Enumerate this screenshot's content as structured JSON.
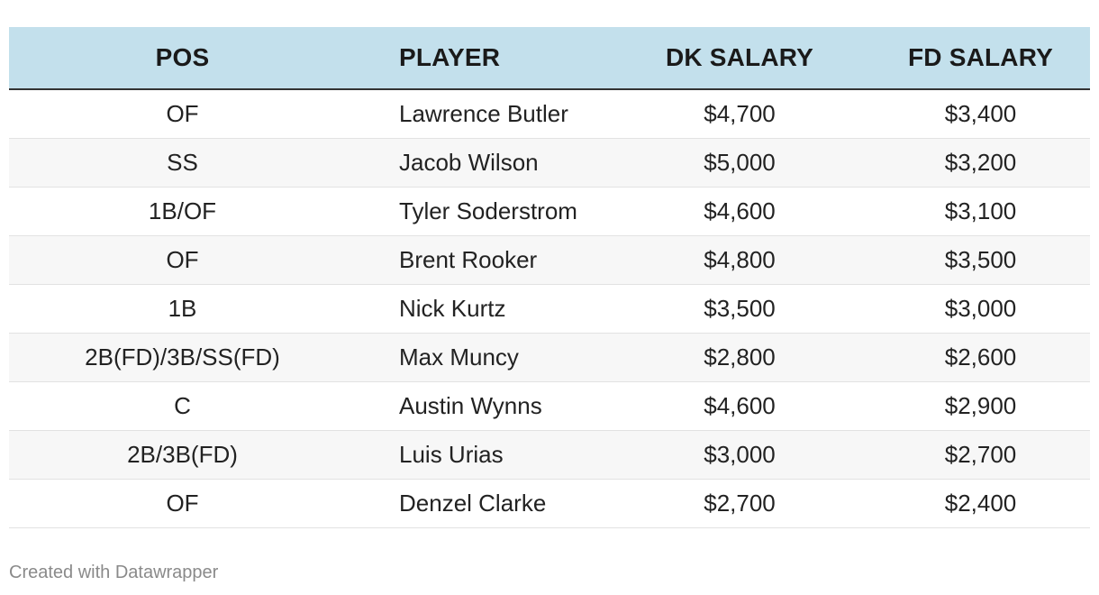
{
  "chart_data": {
    "type": "table",
    "columns": [
      "POS",
      "PLAYER",
      "DK SALARY",
      "FD SALARY"
    ],
    "rows": [
      [
        "OF",
        "Lawrence Butler",
        "$4,700",
        "$3,400"
      ],
      [
        "SS",
        "Jacob Wilson",
        "$5,000",
        "$3,200"
      ],
      [
        "1B/OF",
        "Tyler Soderstrom",
        "$4,600",
        "$3,100"
      ],
      [
        "OF",
        "Brent Rooker",
        "$4,800",
        "$3,500"
      ],
      [
        "1B",
        "Nick Kurtz",
        "$3,500",
        "$3,000"
      ],
      [
        "2B(FD)/3B/SS(FD)",
        "Max Muncy",
        "$2,800",
        "$2,600"
      ],
      [
        "C",
        "Austin Wynns",
        "$4,600",
        "$2,900"
      ],
      [
        "2B/3B(FD)",
        "Luis Urias",
        "$3,000",
        "$2,700"
      ],
      [
        "OF",
        "Denzel Clarke",
        "$2,700",
        "$2,400"
      ]
    ],
    "header_color": "#c3e0ec",
    "stripe_color": "#f7f7f7"
  },
  "footer": {
    "credit": "Created with Datawrapper"
  }
}
